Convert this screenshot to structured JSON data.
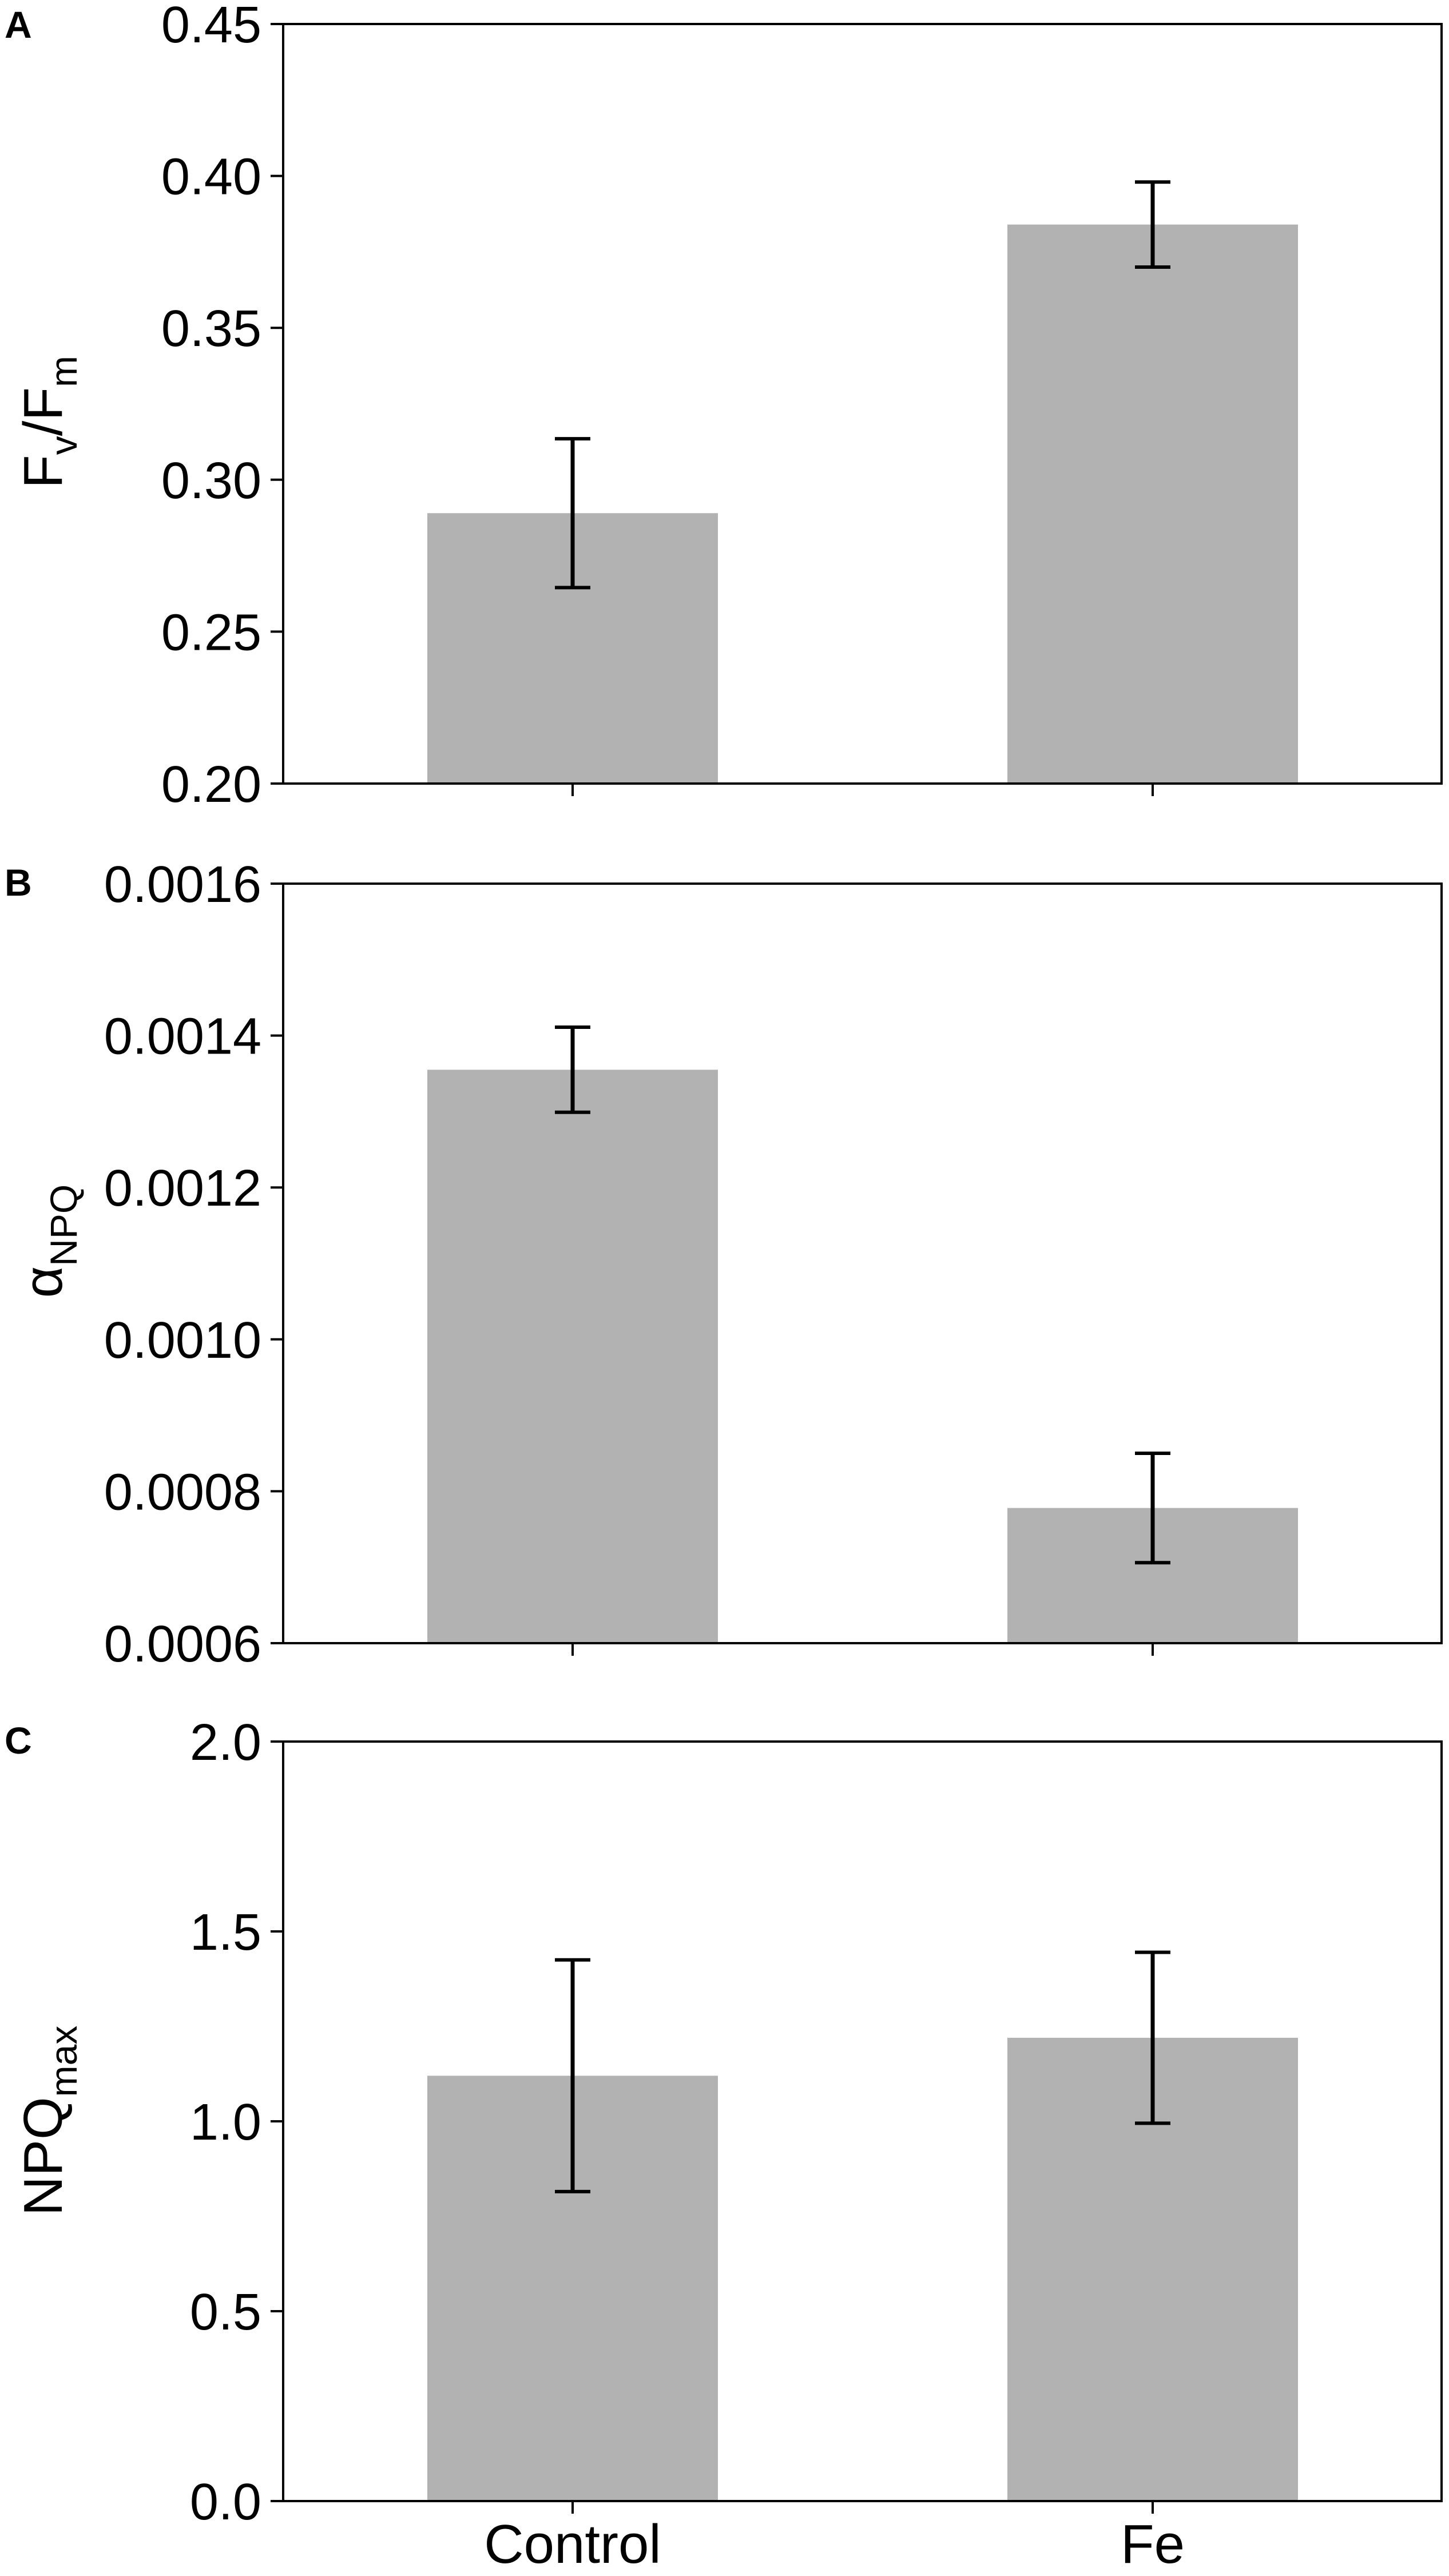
{
  "colors": {
    "bar": "#b2b2b2",
    "axis": "#000000",
    "background": "#ffffff"
  },
  "chart_data": [
    {
      "panel": "A",
      "type": "bar",
      "ylabel": {
        "main": "F",
        "sub": "v",
        "sep": "/F",
        "sub2": "m"
      },
      "ylim": [
        0.2,
        0.45
      ],
      "yticks": [
        "0.20",
        "0.25",
        "0.30",
        "0.35",
        "0.40",
        "0.45"
      ],
      "categories": [
        "Control",
        "Fe"
      ],
      "values": [
        0.289,
        0.384
      ],
      "errors": [
        0.0245,
        0.014
      ],
      "show_xticklabels": false,
      "grid": false
    },
    {
      "panel": "B",
      "type": "bar",
      "ylabel": {
        "main": "α",
        "sub": "NPQ"
      },
      "ylim": [
        0.0006,
        0.0016
      ],
      "yticks": [
        "0.0006",
        "0.0008",
        "0.0010",
        "0.0012",
        "0.0014",
        "0.0016"
      ],
      "categories": [
        "Control",
        "Fe"
      ],
      "values": [
        0.001355,
        0.000778
      ],
      "errors": [
        5.6e-05,
        7.2e-05
      ],
      "show_xticklabels": false,
      "grid": false
    },
    {
      "panel": "C",
      "type": "bar",
      "ylabel": {
        "main": "NPQ",
        "sub": "max"
      },
      "ylim": [
        0.0,
        2.0
      ],
      "yticks": [
        "0.0",
        "0.5",
        "1.0",
        "1.5",
        "2.0"
      ],
      "categories": [
        "Control",
        "Fe"
      ],
      "values": [
        1.12,
        1.22
      ],
      "errors": [
        0.305,
        0.225
      ],
      "show_xticklabels": true,
      "grid": false
    }
  ]
}
